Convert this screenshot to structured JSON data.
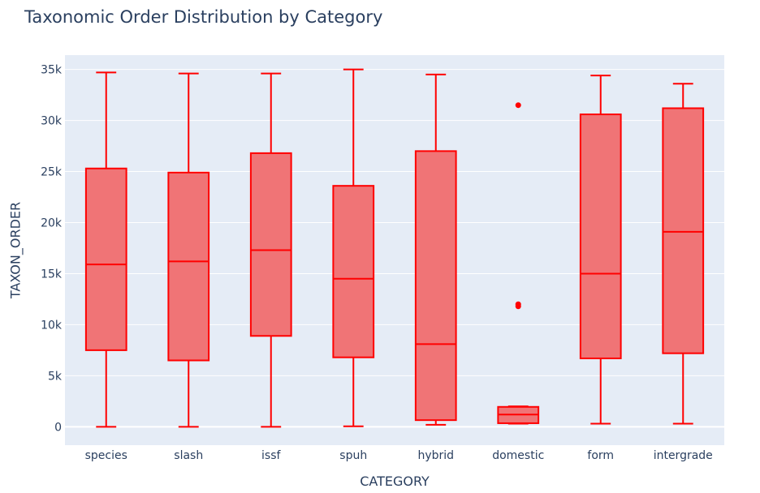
{
  "chart_data": {
    "type": "box",
    "title": "Taxonomic Order Distribution by Category",
    "xlabel": "CATEGORY",
    "ylabel": "TAXON_ORDER",
    "ylim": [
      -1800,
      36400
    ],
    "yticks": [
      0,
      5000,
      10000,
      15000,
      20000,
      25000,
      30000,
      35000
    ],
    "ytick_labels": [
      "0",
      "5k",
      "10k",
      "15k",
      "20k",
      "25k",
      "30k",
      "35k"
    ],
    "grid": true,
    "colors": {
      "stroke": "#ff0000",
      "fill": "#f07476",
      "plot_bg": "#e5ecf6",
      "grid": "#ffffff",
      "text": "#2a3f5f"
    },
    "categories": [
      "species",
      "slash",
      "issf",
      "spuh",
      "hybrid",
      "domestic",
      "form",
      "intergrade"
    ],
    "boxes": [
      {
        "category": "species",
        "min": 0,
        "q1": 7500,
        "median": 15900,
        "q3": 25300,
        "max": 34700,
        "outliers": []
      },
      {
        "category": "slash",
        "min": 0,
        "q1": 6500,
        "median": 16200,
        "q3": 24900,
        "max": 34600,
        "outliers": []
      },
      {
        "category": "issf",
        "min": 0,
        "q1": 8900,
        "median": 17300,
        "q3": 26800,
        "max": 34600,
        "outliers": []
      },
      {
        "category": "spuh",
        "min": 50,
        "q1": 6800,
        "median": 14500,
        "q3": 23600,
        "max": 35000,
        "outliers": []
      },
      {
        "category": "hybrid",
        "min": 200,
        "q1": 650,
        "median": 8100,
        "q3": 27000,
        "max": 34500,
        "outliers": []
      },
      {
        "category": "domestic",
        "min": 300,
        "q1": 350,
        "median": 1200,
        "q3": 1950,
        "max": 2000,
        "outliers": [
          11800,
          12000,
          31500
        ]
      },
      {
        "category": "form",
        "min": 300,
        "q1": 6700,
        "median": 15000,
        "q3": 30600,
        "max": 34400,
        "outliers": []
      },
      {
        "category": "intergrade",
        "min": 300,
        "q1": 7200,
        "median": 19100,
        "q3": 31200,
        "max": 33600,
        "outliers": []
      }
    ]
  }
}
